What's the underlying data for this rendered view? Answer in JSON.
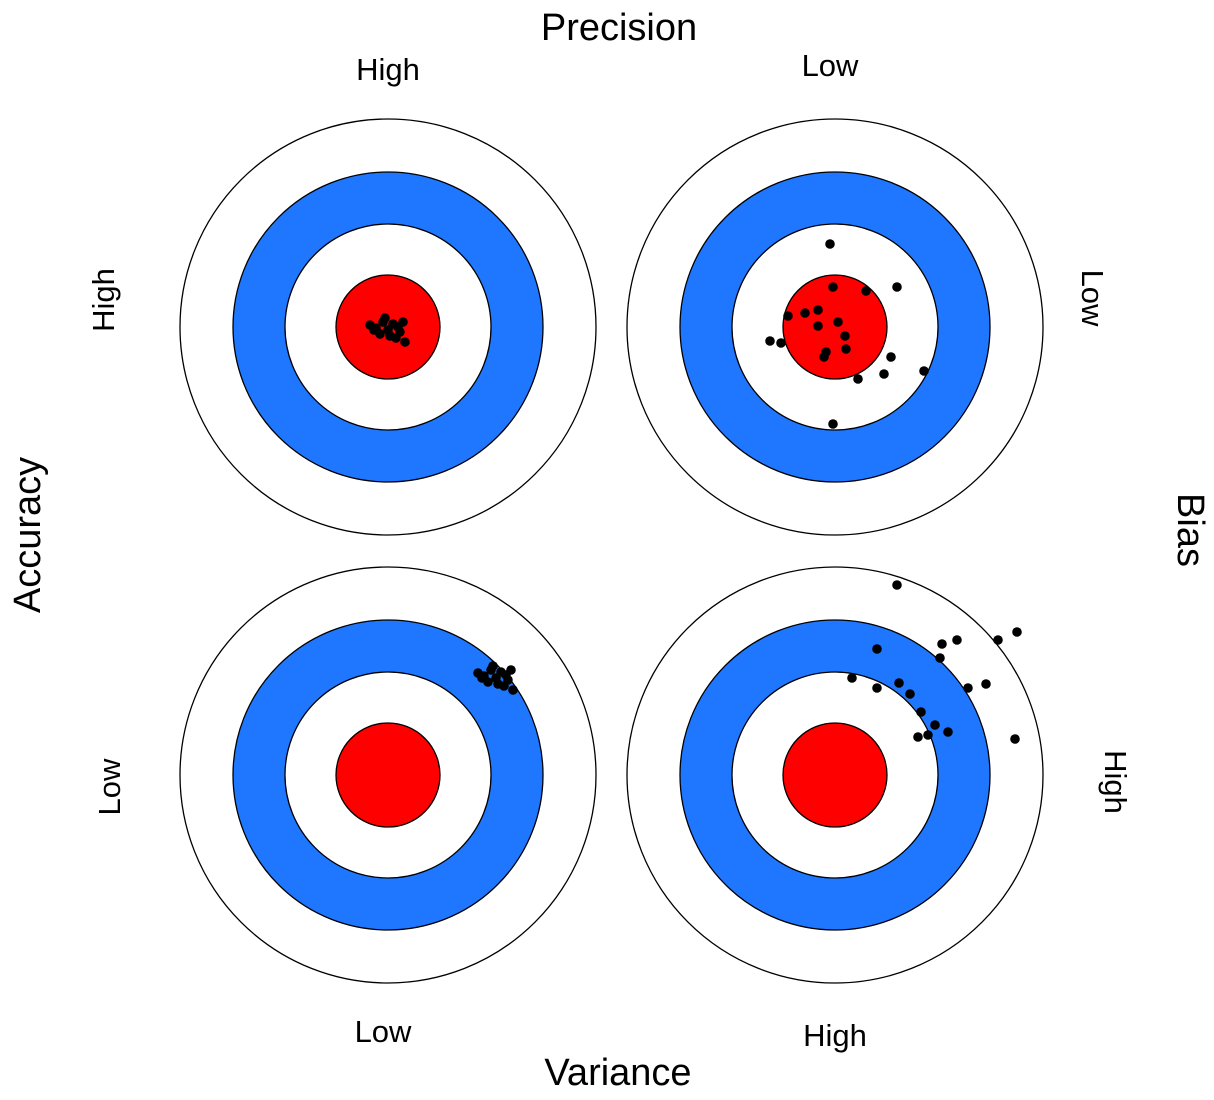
{
  "top": {
    "title": "Precision",
    "labels": [
      "High",
      "Low"
    ]
  },
  "bottom": {
    "title": "Variance",
    "labels": [
      "Low",
      "High"
    ]
  },
  "left": {
    "title": "Accuracy",
    "labels": [
      "High",
      "Low"
    ]
  },
  "right": {
    "title": "Bias",
    "labels": [
      "Low",
      "High"
    ]
  }
}
